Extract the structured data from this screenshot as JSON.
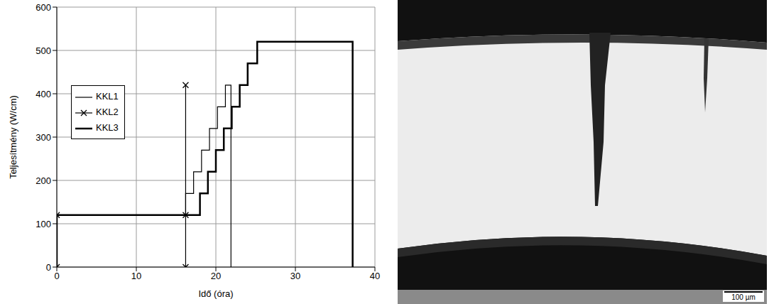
{
  "chart_data": {
    "type": "line",
    "xlabel": "Idő (óra)",
    "ylabel": "Teljesítmény (W/cm)",
    "xlim": [
      0,
      40
    ],
    "xticks": [
      0,
      10,
      20,
      30,
      40
    ],
    "ylim": [
      0,
      600
    ],
    "yticks": [
      0,
      100,
      200,
      300,
      400,
      500,
      600
    ],
    "grid": true,
    "legend": "left",
    "series": [
      {
        "name": "KKL1",
        "color": "#000000",
        "line_style": "thin",
        "marker": "none",
        "x": [
          0,
          0,
          16.2,
          16.2,
          17.2,
          17.2,
          18.2,
          18.2,
          19.2,
          19.2,
          20.2,
          20.2,
          21.2,
          21.2,
          21.9,
          21.9
        ],
        "values": [
          0,
          120,
          120,
          170,
          170,
          220,
          220,
          270,
          270,
          320,
          320,
          370,
          370,
          420,
          420,
          0
        ]
      },
      {
        "name": "KKL2",
        "color": "#000000",
        "line_style": "thin",
        "marker": "x",
        "x": [
          0,
          0,
          16.2,
          16.2,
          16.2
        ],
        "values": [
          0,
          120,
          120,
          420,
          0
        ]
      },
      {
        "name": "KKL3",
        "color": "#000000",
        "line_style": "thick",
        "marker": "none",
        "x": [
          0,
          0,
          18,
          18,
          19,
          19,
          20,
          20,
          21,
          21,
          22,
          22,
          23,
          23,
          24,
          24,
          25.2,
          25.2,
          37.2,
          37.2
        ],
        "values": [
          0,
          120,
          120,
          170,
          170,
          220,
          220,
          270,
          270,
          320,
          320,
          370,
          370,
          420,
          420,
          470,
          470,
          520,
          520,
          0
        ]
      }
    ]
  },
  "micrograph": {
    "scale_bar": "100 µm"
  }
}
